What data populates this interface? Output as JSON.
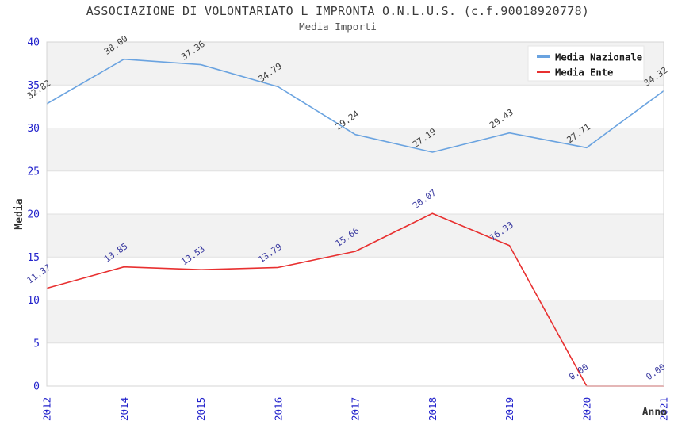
{
  "chart_data": {
    "type": "line",
    "title": "ASSOCIAZIONE DI VOLONTARIATO L IMPRONTA O.N.L.U.S. (c.f.90018920778)",
    "subtitle": "Media Importi",
    "xlabel": "Anno",
    "ylabel": "Media",
    "categories": [
      "2012",
      "2014",
      "2015",
      "2016",
      "2017",
      "2018",
      "2019",
      "2020",
      "2021"
    ],
    "ylim": [
      0,
      40
    ],
    "ytick_step": 5,
    "yticks": [
      0,
      5,
      10,
      15,
      20,
      25,
      30,
      35,
      40
    ],
    "grid": "alternating-horizontal-bands",
    "legend_position": "top-right",
    "series": [
      {
        "name": "Media Nazionale",
        "color": "#6aa3e0",
        "label_color": "#3c3c3c",
        "values": [
          32.82,
          38.0,
          37.36,
          34.79,
          29.24,
          27.19,
          29.43,
          27.71,
          34.32
        ]
      },
      {
        "name": "Media Ente",
        "color": "#e83030",
        "label_color": "#3a3aa0",
        "values": [
          11.37,
          13.85,
          13.53,
          13.79,
          15.66,
          20.07,
          16.33,
          0.0,
          0.0
        ]
      }
    ]
  },
  "colors": {
    "axis_tick_label": "#2323cc",
    "band_gray": "#f2f2f2",
    "band_white": "#ffffff",
    "gridline": "#e0e0e0",
    "frame": "#d4d4d4",
    "legend_bg": "#ffffff",
    "legend_border": "#e6e6e6"
  }
}
